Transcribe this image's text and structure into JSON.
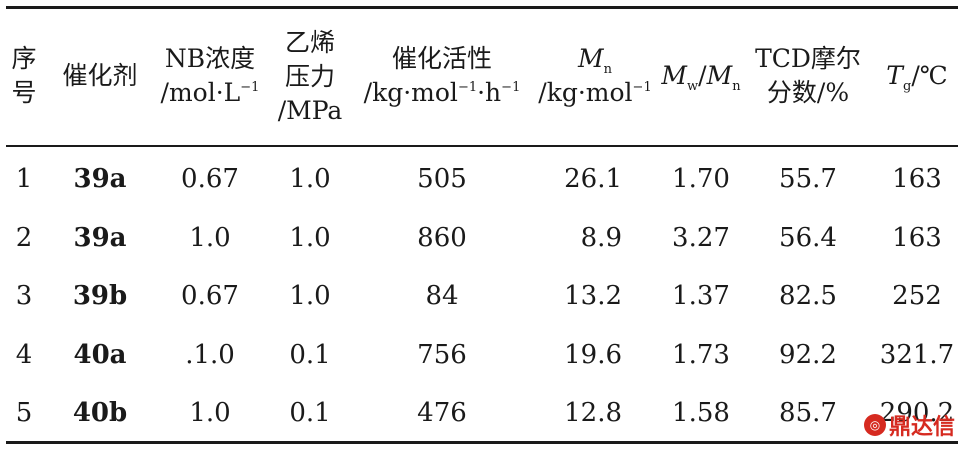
{
  "table": {
    "headers": {
      "seq": [
        "序",
        "号"
      ],
      "catalyst": "催化剂",
      "nb_line1": "NB浓度",
      "nb_line2_pre": "/mol·L",
      "nb_line2_sup": "−1",
      "ethylene": [
        "乙烯",
        "压力",
        "/MPa"
      ],
      "activity_line1": "催化活性",
      "activity_line2_a": "/kg·mol",
      "activity_line2_sup1": "−1",
      "activity_line2_b": "·h",
      "activity_line2_sup2": "−1",
      "mn_symbol": "M",
      "mn_sub": "n",
      "mn_line2_pre": "/kg·mol",
      "mn_line2_sup": "−1",
      "mwmn_m1": "M",
      "mwmn_sub1": "w",
      "mwmn_slash": "/",
      "mwmn_m2": "M",
      "mwmn_sub2": "n",
      "tcd": [
        "TCD摩尔",
        "分数/%"
      ],
      "tg_symbol": "T",
      "tg_sub": "g",
      "tg_unit": "/℃"
    },
    "rows": [
      {
        "seq": "1",
        "catalyst": "39a",
        "nb": "0.67",
        "pressure": "1.0",
        "activity": "505",
        "mn": "26.1",
        "mwmn": "1.70",
        "tcd": "55.7",
        "tg": "163"
      },
      {
        "seq": "2",
        "catalyst": "39a",
        "nb": "1.0",
        "pressure": "1.0",
        "activity": "860",
        "mn": "8.9",
        "mwmn": "3.27",
        "tcd": "56.4",
        "tg": "163"
      },
      {
        "seq": "3",
        "catalyst": "39b",
        "nb": "0.67",
        "pressure": "1.0",
        "activity": "84",
        "mn": "13.2",
        "mwmn": "1.37",
        "tcd": "82.5",
        "tg": "252"
      },
      {
        "seq": "4",
        "catalyst": "40a",
        "nb": ".1.0",
        "pressure": "0.1",
        "activity": "756",
        "mn": "19.6",
        "mwmn": "1.73",
        "tcd": "92.2",
        "tg": "321.7"
      },
      {
        "seq": "5",
        "catalyst": "40b",
        "nb": "1.0",
        "pressure": "0.1",
        "activity": "476",
        "mn": "12.8",
        "mwmn": "1.58",
        "tcd": "85.7",
        "tg": "290.2"
      }
    ]
  },
  "watermark": {
    "text": "鼎达信",
    "color": "#d62a20",
    "icon": "dingdaxin-logo-icon"
  }
}
